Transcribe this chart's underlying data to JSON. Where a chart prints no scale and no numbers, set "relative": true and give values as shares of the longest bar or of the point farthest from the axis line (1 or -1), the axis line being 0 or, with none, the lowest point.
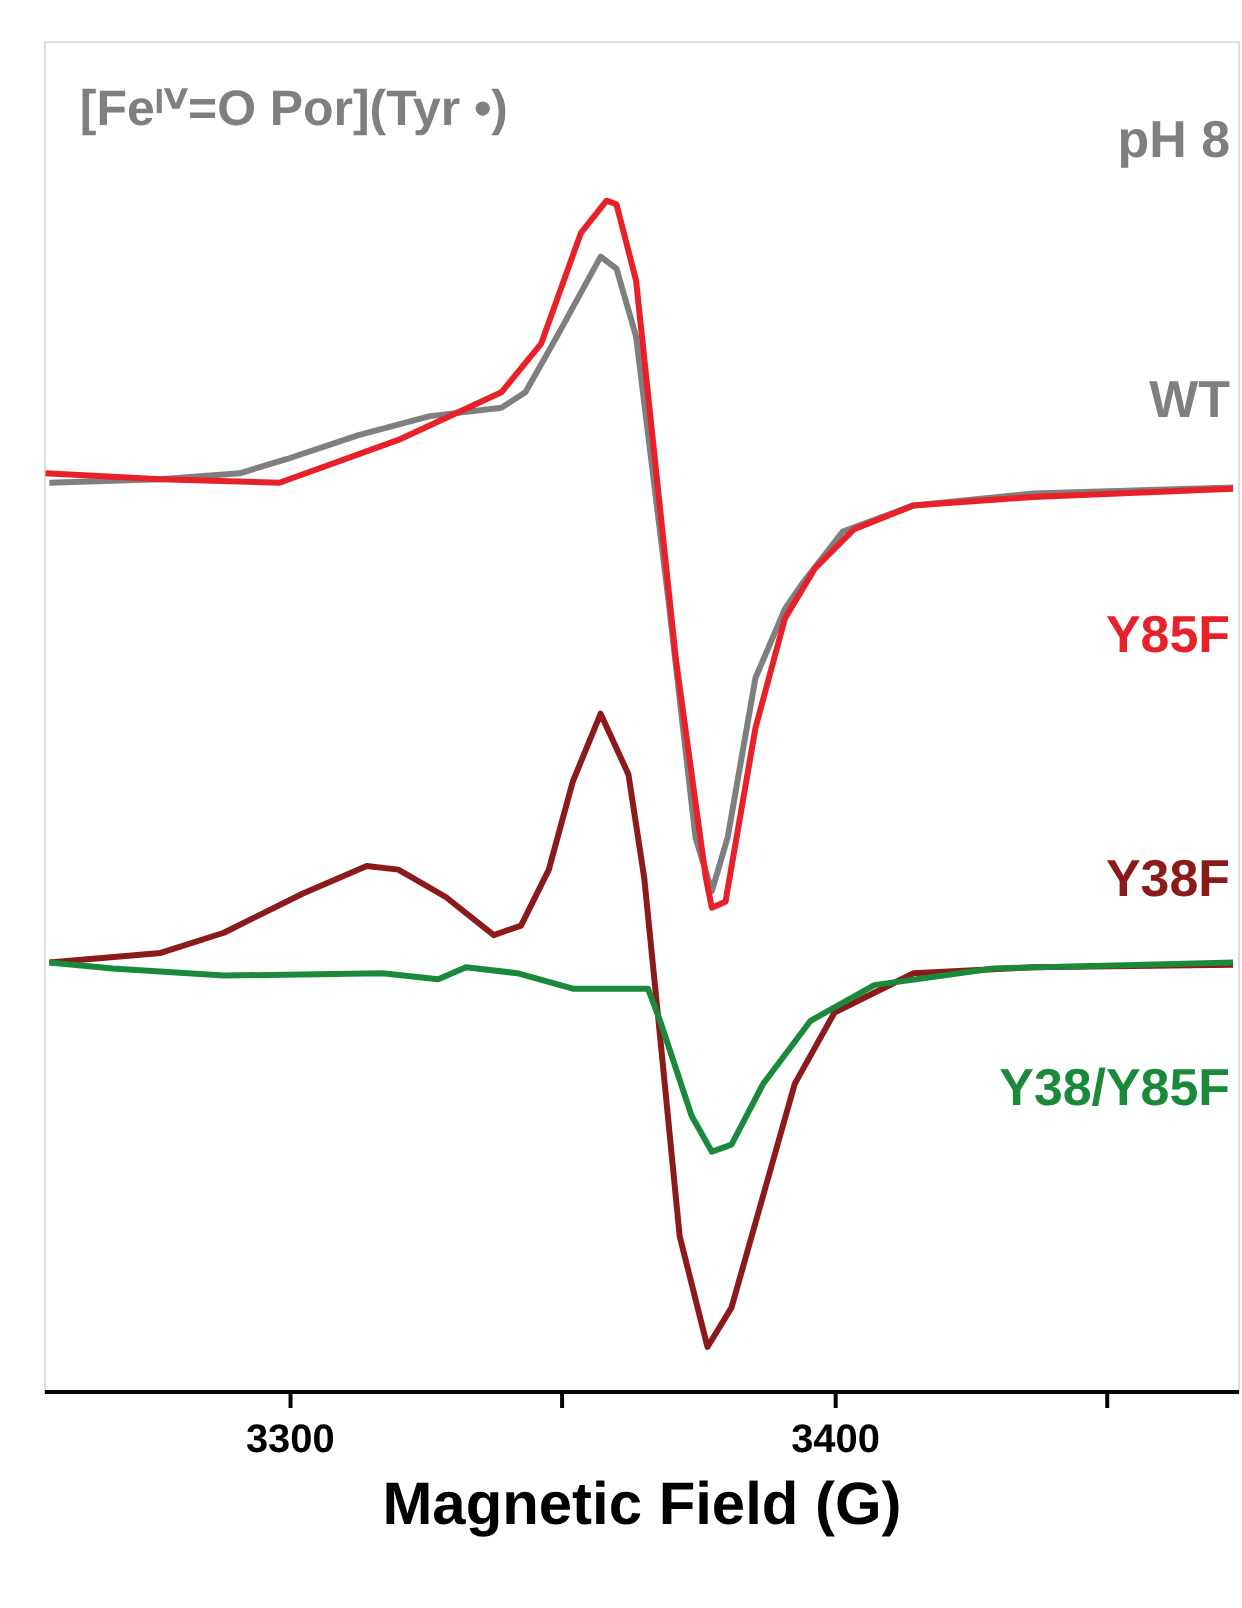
{
  "chart_data": {
    "type": "line",
    "title": "[Feᴵⱽ=O Por](Tyr •)",
    "xlabel": "Magnetic Field (G)",
    "relative": true,
    "xlim": [
      3255,
      3474
    ],
    "xticks": [
      3300,
      {
        "value": 3350,
        "label": null
      },
      3400,
      {
        "value": 3450,
        "label": null
      }
    ],
    "grid": false,
    "legend": false,
    "line_style": "solid",
    "marker": "none",
    "annotations": [
      "pH 8"
    ],
    "series": [
      {
        "name": "WT",
        "color": "#7f7f7f",
        "x": [
          3256.0,
          3276.4,
          3290.9,
          3299.6,
          3312.7,
          3325.8,
          3338.9,
          3343.3,
          3349.1,
          3357.1,
          3360.0,
          3363.6,
          3369.5,
          3374.5,
          3377.5,
          3380.4,
          3385.5,
          3390.9,
          3394.2,
          3401.5,
          3414.5,
          3436.4,
          3473.1
        ],
        "values": [
          0.763,
          0.766,
          0.771,
          0.783,
          0.803,
          0.819,
          0.826,
          0.839,
          0.886,
          0.953,
          0.943,
          0.886,
          0.666,
          0.465,
          0.42,
          0.465,
          0.599,
          0.657,
          0.679,
          0.722,
          0.744,
          0.754,
          0.759
        ]
      },
      {
        "name": "Y85F",
        "color": "#e8202a",
        "x": [
          3255.3,
          3276.4,
          3298.2,
          3320.0,
          3338.9,
          3346.2,
          3353.5,
          3358.2,
          3360.0,
          3363.6,
          3370.9,
          3376.4,
          3377.5,
          3380.0,
          3385.5,
          3390.9,
          3396.4,
          3403.6,
          3414.5,
          3436.4,
          3473.1
        ],
        "values": [
          0.771,
          0.766,
          0.763,
          0.799,
          0.839,
          0.88,
          0.973,
          1.0,
          0.997,
          0.933,
          0.615,
          0.431,
          0.406,
          0.411,
          0.557,
          0.649,
          0.691,
          0.724,
          0.744,
          0.751,
          0.758
        ]
      },
      {
        "name": "Y38F",
        "color": "#8b1a1a",
        "x": [
          3256.0,
          3276.4,
          3288.0,
          3302.5,
          3314.2,
          3320.0,
          3328.7,
          3337.5,
          3342.5,
          3347.6,
          3352.0,
          3357.1,
          3362.2,
          3365.1,
          3368.0,
          3371.6,
          3376.7,
          3381.1,
          3386.9,
          3392.7,
          3400.0,
          3414.5,
          3436.4,
          3473.1
        ],
        "values": [
          0.36,
          0.368,
          0.385,
          0.418,
          0.441,
          0.438,
          0.415,
          0.383,
          0.391,
          0.438,
          0.512,
          0.569,
          0.518,
          0.431,
          0.298,
          0.13,
          0.037,
          0.07,
          0.164,
          0.258,
          0.318,
          0.351,
          0.356,
          0.358
        ]
      },
      {
        "name": "Y38/Y85F",
        "color": "#1a8a3a",
        "x": [
          3256.0,
          3267.6,
          3288.0,
          3317.1,
          3327.3,
          3332.4,
          3341.8,
          3352.0,
          3365.8,
          3368.0,
          3373.8,
          3377.5,
          3381.1,
          3386.9,
          3395.6,
          3407.3,
          3429.1,
          3473.1
        ],
        "values": [
          0.36,
          0.355,
          0.349,
          0.351,
          0.346,
          0.356,
          0.351,
          0.338,
          0.338,
          0.311,
          0.231,
          0.201,
          0.207,
          0.258,
          0.311,
          0.341,
          0.355,
          0.36
        ]
      }
    ]
  }
}
